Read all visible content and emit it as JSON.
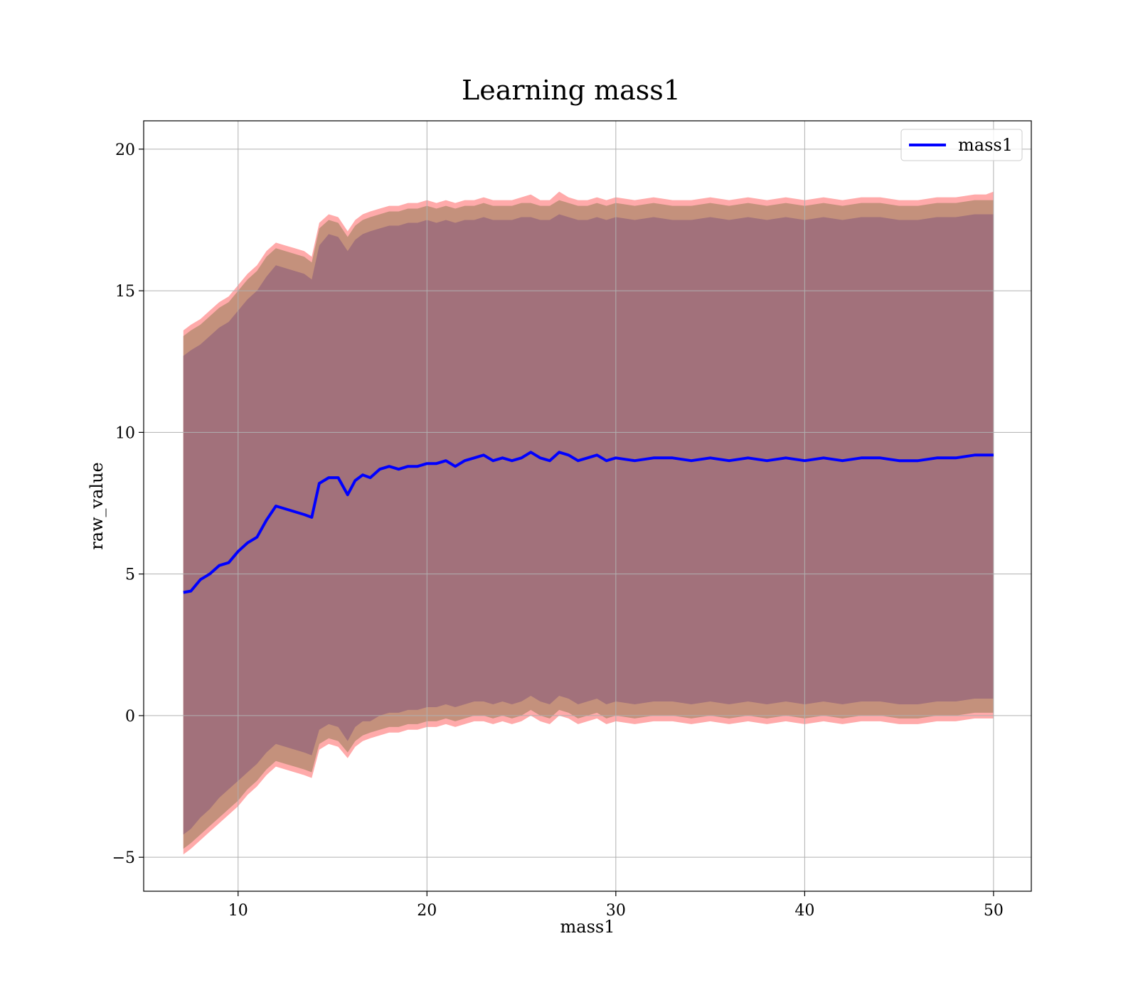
{
  "chart_data": {
    "type": "line",
    "title": "Learning mass1",
    "xlabel": "mass1",
    "ylabel": "raw_value",
    "xlim": [
      5,
      52
    ],
    "ylim": [
      -6.2,
      21
    ],
    "xticks": [
      10,
      20,
      30,
      40,
      50
    ],
    "yticks": [
      -5,
      0,
      5,
      10,
      15,
      20
    ],
    "xtick_labels": [
      "10",
      "20",
      "30",
      "40",
      "50"
    ],
    "ytick_labels": [
      "−5",
      "0",
      "5",
      "10",
      "15",
      "20"
    ],
    "grid": true,
    "legend": {
      "position": "top-right",
      "entries": [
        "mass1"
      ]
    },
    "colors": {
      "line": "#0000ff",
      "band_inner": "#a2717b",
      "band_mid": "#c4917c",
      "band_outer": "#ffaaaa",
      "grid": "#b0b0b0"
    },
    "x": [
      7.1,
      7.5,
      8,
      8.5,
      9,
      9.5,
      10,
      10.5,
      11,
      11.5,
      12,
      12.5,
      13,
      13.5,
      13.9,
      14.3,
      14.8,
      15.3,
      15.8,
      16.2,
      16.6,
      17,
      17.5,
      18,
      18.5,
      19,
      19.5,
      20,
      20.5,
      21,
      21.5,
      22,
      22.5,
      23,
      23.5,
      24,
      24.5,
      25,
      25.5,
      26,
      26.5,
      27,
      27.5,
      28,
      28.5,
      29,
      29.5,
      30,
      31,
      32,
      33,
      34,
      35,
      36,
      37,
      38,
      39,
      40,
      41,
      42,
      43,
      44,
      45,
      46,
      47,
      48,
      49,
      49.6,
      50
    ],
    "series": [
      {
        "name": "mass1",
        "values": [
          4.35,
          4.4,
          4.8,
          5.0,
          5.3,
          5.4,
          5.8,
          6.1,
          6.3,
          6.9,
          7.4,
          7.3,
          7.2,
          7.1,
          7.0,
          8.2,
          8.4,
          8.4,
          7.8,
          8.3,
          8.5,
          8.4,
          8.7,
          8.8,
          8.7,
          8.8,
          8.8,
          8.9,
          8.9,
          9.0,
          8.8,
          9.0,
          9.1,
          9.2,
          9.0,
          9.1,
          9.0,
          9.1,
          9.3,
          9.1,
          9.0,
          9.3,
          9.2,
          9.0,
          9.1,
          9.2,
          9.0,
          9.1,
          9.0,
          9.1,
          9.1,
          9.0,
          9.1,
          9.0,
          9.1,
          9.0,
          9.1,
          9.0,
          9.1,
          9.0,
          9.1,
          9.1,
          9.0,
          9.0,
          9.1,
          9.1,
          9.2,
          9.2,
          9.2
        ]
      }
    ],
    "band_inner_upper": [
      12.7,
      12.9,
      13.1,
      13.4,
      13.7,
      13.9,
      14.3,
      14.7,
      15.0,
      15.5,
      15.9,
      15.8,
      15.7,
      15.6,
      15.4,
      16.6,
      17.0,
      16.9,
      16.4,
      16.8,
      17.0,
      17.1,
      17.2,
      17.3,
      17.3,
      17.4,
      17.4,
      17.5,
      17.4,
      17.5,
      17.4,
      17.5,
      17.5,
      17.6,
      17.5,
      17.5,
      17.5,
      17.6,
      17.6,
      17.5,
      17.5,
      17.7,
      17.6,
      17.5,
      17.5,
      17.6,
      17.5,
      17.6,
      17.5,
      17.6,
      17.5,
      17.5,
      17.6,
      17.5,
      17.6,
      17.5,
      17.6,
      17.5,
      17.6,
      17.5,
      17.6,
      17.6,
      17.5,
      17.5,
      17.6,
      17.6,
      17.7,
      17.7,
      17.7
    ],
    "band_inner_lower": [
      -4.2,
      -4.0,
      -3.6,
      -3.3,
      -2.9,
      -2.6,
      -2.3,
      -2.0,
      -1.7,
      -1.3,
      -1.0,
      -1.1,
      -1.2,
      -1.3,
      -1.4,
      -0.5,
      -0.3,
      -0.4,
      -0.9,
      -0.4,
      -0.2,
      -0.2,
      0.0,
      0.1,
      0.1,
      0.2,
      0.2,
      0.3,
      0.3,
      0.4,
      0.3,
      0.4,
      0.5,
      0.5,
      0.4,
      0.5,
      0.4,
      0.5,
      0.7,
      0.5,
      0.4,
      0.7,
      0.6,
      0.4,
      0.5,
      0.6,
      0.4,
      0.5,
      0.4,
      0.5,
      0.5,
      0.4,
      0.5,
      0.4,
      0.5,
      0.4,
      0.5,
      0.4,
      0.5,
      0.4,
      0.5,
      0.5,
      0.4,
      0.4,
      0.5,
      0.5,
      0.6,
      0.6,
      0.6
    ],
    "band_mid_upper": [
      13.4,
      13.6,
      13.8,
      14.1,
      14.4,
      14.6,
      15.0,
      15.4,
      15.7,
      16.2,
      16.5,
      16.4,
      16.3,
      16.2,
      16.0,
      17.2,
      17.5,
      17.4,
      16.9,
      17.3,
      17.5,
      17.6,
      17.7,
      17.8,
      17.8,
      17.9,
      17.9,
      18.0,
      17.9,
      18.0,
      17.9,
      18.0,
      18.0,
      18.1,
      18.0,
      18.0,
      18.0,
      18.1,
      18.1,
      18.0,
      18.0,
      18.2,
      18.1,
      18.0,
      18.0,
      18.1,
      18.0,
      18.1,
      18.0,
      18.1,
      18.0,
      18.0,
      18.1,
      18.0,
      18.1,
      18.0,
      18.1,
      18.0,
      18.1,
      18.0,
      18.1,
      18.1,
      18.0,
      18.0,
      18.1,
      18.1,
      18.2,
      18.2,
      18.2
    ],
    "band_mid_lower": [
      -4.7,
      -4.5,
      -4.2,
      -3.9,
      -3.6,
      -3.3,
      -3.0,
      -2.6,
      -2.3,
      -1.9,
      -1.6,
      -1.7,
      -1.8,
      -1.9,
      -2.0,
      -1.0,
      -0.8,
      -0.9,
      -1.3,
      -0.9,
      -0.7,
      -0.6,
      -0.5,
      -0.4,
      -0.4,
      -0.3,
      -0.3,
      -0.2,
      -0.2,
      -0.1,
      -0.2,
      -0.1,
      0.0,
      0.0,
      -0.1,
      0.0,
      -0.1,
      0.0,
      0.2,
      0.0,
      -0.1,
      0.2,
      0.1,
      -0.1,
      0.0,
      0.1,
      -0.1,
      0.0,
      -0.1,
      0.0,
      0.0,
      -0.1,
      0.0,
      -0.1,
      0.0,
      -0.1,
      0.0,
      -0.1,
      0.0,
      -0.1,
      0.0,
      0.0,
      -0.1,
      -0.1,
      0.0,
      0.0,
      0.1,
      0.1,
      0.1
    ],
    "band_outer_upper": [
      13.6,
      13.8,
      14.0,
      14.3,
      14.6,
      14.8,
      15.2,
      15.6,
      15.9,
      16.4,
      16.7,
      16.6,
      16.5,
      16.4,
      16.2,
      17.4,
      17.7,
      17.6,
      17.1,
      17.5,
      17.7,
      17.8,
      17.9,
      18.0,
      18.0,
      18.1,
      18.1,
      18.2,
      18.1,
      18.2,
      18.1,
      18.2,
      18.2,
      18.3,
      18.2,
      18.2,
      18.2,
      18.3,
      18.4,
      18.2,
      18.2,
      18.5,
      18.3,
      18.2,
      18.2,
      18.3,
      18.2,
      18.3,
      18.2,
      18.3,
      18.2,
      18.2,
      18.3,
      18.2,
      18.3,
      18.2,
      18.3,
      18.2,
      18.3,
      18.2,
      18.3,
      18.3,
      18.2,
      18.2,
      18.3,
      18.3,
      18.4,
      18.4,
      18.5
    ],
    "band_outer_lower": [
      -4.9,
      -4.7,
      -4.4,
      -4.1,
      -3.8,
      -3.5,
      -3.2,
      -2.8,
      -2.5,
      -2.1,
      -1.8,
      -1.9,
      -2.0,
      -2.1,
      -2.2,
      -1.2,
      -1.0,
      -1.1,
      -1.5,
      -1.1,
      -0.9,
      -0.8,
      -0.7,
      -0.6,
      -0.6,
      -0.5,
      -0.5,
      -0.4,
      -0.4,
      -0.3,
      -0.4,
      -0.3,
      -0.2,
      -0.2,
      -0.3,
      -0.2,
      -0.3,
      -0.2,
      0.0,
      -0.2,
      -0.3,
      0.0,
      -0.1,
      -0.3,
      -0.2,
      -0.1,
      -0.3,
      -0.2,
      -0.3,
      -0.2,
      -0.2,
      -0.3,
      -0.2,
      -0.3,
      -0.2,
      -0.3,
      -0.2,
      -0.3,
      -0.2,
      -0.3,
      -0.2,
      -0.2,
      -0.3,
      -0.3,
      -0.2,
      -0.2,
      -0.1,
      -0.1,
      -0.1
    ]
  }
}
